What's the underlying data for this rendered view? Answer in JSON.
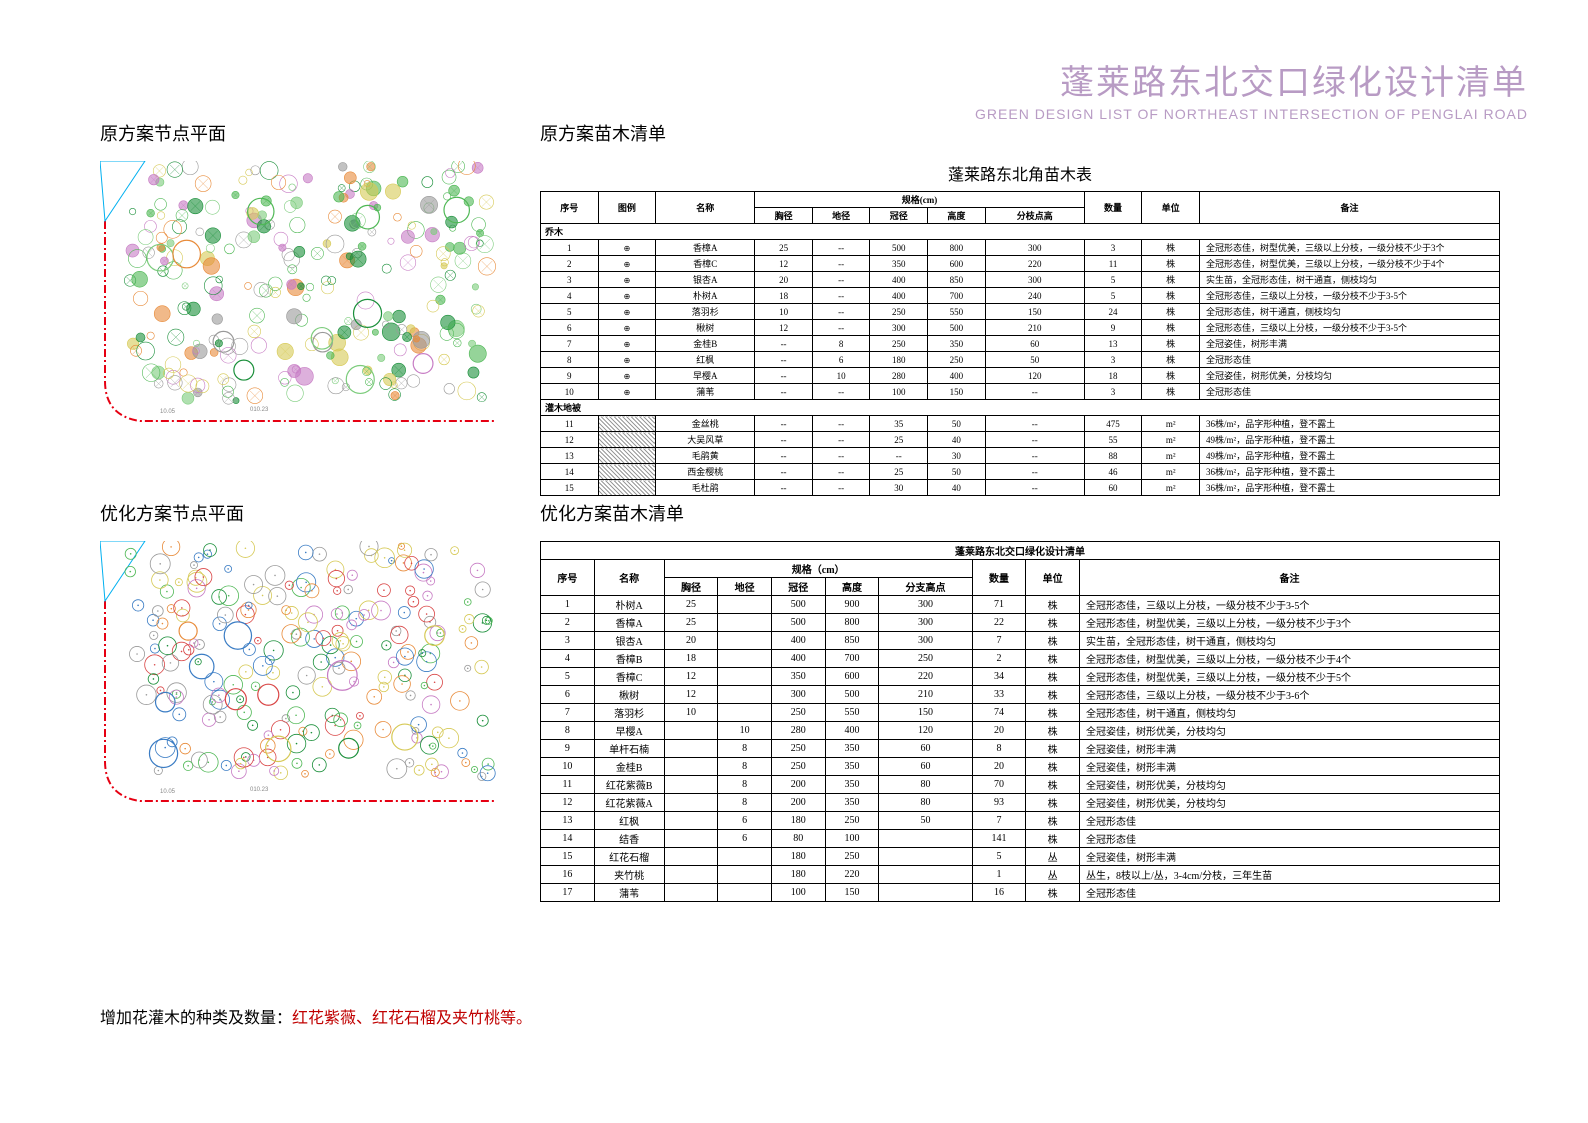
{
  "header": {
    "title_cn": "蓬莱路东北交口绿化设计清单",
    "title_en": "GREEN DESIGN LIST OF NORTHEAST INTERSECTION OF PENGLAI ROAD"
  },
  "labels": {
    "q1": "原方案节点平面",
    "q2": "原方案苗木清单",
    "q3": "优化方案节点平面",
    "q4": "优化方案苗木清单"
  },
  "table1": {
    "title": "蓬莱路东北角苗木表",
    "headers": {
      "seq": "序号",
      "pic": "图例",
      "name": "名称",
      "spec": "规格(cm)",
      "xj": "胸径",
      "dj": "地径",
      "gj": "冠径",
      "gd": "高度",
      "fz": "分枝点高",
      "qty": "数量",
      "unit": "单位",
      "remarks": "备注"
    },
    "section_trees": "乔木",
    "section_shrubs": "灌木地被",
    "rows_trees": [
      {
        "n": "1",
        "name": "香樟A",
        "xj": "25",
        "dj": "--",
        "gj": "500",
        "gd": "800",
        "fz": "300",
        "qty": "3",
        "unit": "株",
        "rem": "全冠形态佳，树型优美，三级以上分枝，一级分枝不少于3个"
      },
      {
        "n": "2",
        "name": "香樟C",
        "xj": "12",
        "dj": "--",
        "gj": "350",
        "gd": "600",
        "fz": "220",
        "qty": "11",
        "unit": "株",
        "rem": "全冠形态佳，树型优美，三级以上分枝，一级分枝不少于4个"
      },
      {
        "n": "3",
        "name": "银杏A",
        "xj": "20",
        "dj": "--",
        "gj": "400",
        "gd": "850",
        "fz": "300",
        "qty": "5",
        "unit": "株",
        "rem": "实生苗，全冠形态佳，树干通直，侧枝均匀"
      },
      {
        "n": "4",
        "name": "朴树A",
        "xj": "18",
        "dj": "--",
        "gj": "400",
        "gd": "700",
        "fz": "240",
        "qty": "5",
        "unit": "株",
        "rem": "全冠形态佳，三级以上分枝，一级分枝不少于3-5个"
      },
      {
        "n": "5",
        "name": "落羽杉",
        "xj": "10",
        "dj": "--",
        "gj": "250",
        "gd": "550",
        "fz": "150",
        "qty": "24",
        "unit": "株",
        "rem": "全冠形态佳，树干通直，侧枝均匀"
      },
      {
        "n": "6",
        "name": "楸树",
        "xj": "12",
        "dj": "--",
        "gj": "300",
        "gd": "500",
        "fz": "210",
        "qty": "9",
        "unit": "株",
        "rem": "全冠形态佳，三级以上分枝，一级分枝不少于3-5个"
      },
      {
        "n": "7",
        "name": "金桂B",
        "xj": "--",
        "dj": "8",
        "gj": "250",
        "gd": "350",
        "fz": "60",
        "qty": "13",
        "unit": "株",
        "rem": "全冠姿佳，树形丰满"
      },
      {
        "n": "8",
        "name": "红枫",
        "xj": "--",
        "dj": "6",
        "gj": "180",
        "gd": "250",
        "fz": "50",
        "qty": "3",
        "unit": "株",
        "rem": "全冠形态佳"
      },
      {
        "n": "9",
        "name": "早樱A",
        "xj": "--",
        "dj": "10",
        "gj": "280",
        "gd": "400",
        "fz": "120",
        "qty": "18",
        "unit": "株",
        "rem": "全冠姿佳，树形优美，分枝均匀"
      },
      {
        "n": "10",
        "name": "蒲苇",
        "xj": "--",
        "dj": "--",
        "gj": "100",
        "gd": "150",
        "fz": "--",
        "qty": "3",
        "unit": "株",
        "rem": "全冠形态佳"
      }
    ],
    "rows_shrubs": [
      {
        "n": "11",
        "name": "金丝桃",
        "xj": "--",
        "dj": "--",
        "gj": "35",
        "gd": "50",
        "fz": "--",
        "qty": "475",
        "unit": "m²",
        "rem": "36株/m²，品字形种植，登不露土"
      },
      {
        "n": "12",
        "name": "大吴风草",
        "xj": "--",
        "dj": "--",
        "gj": "25",
        "gd": "40",
        "fz": "--",
        "qty": "55",
        "unit": "m²",
        "rem": "49株/m²，品字形种植，登不露土"
      },
      {
        "n": "13",
        "name": "毛鹃黄",
        "xj": "--",
        "dj": "--",
        "gj": "--",
        "gd": "30",
        "fz": "--",
        "qty": "88",
        "unit": "m²",
        "rem": "49株/m²，品字形种植，登不露土"
      },
      {
        "n": "14",
        "name": "西金樱桃",
        "xj": "--",
        "dj": "--",
        "gj": "25",
        "gd": "50",
        "fz": "--",
        "qty": "46",
        "unit": "m²",
        "rem": "36株/m²，品字形种植，登不露土"
      },
      {
        "n": "15",
        "name": "毛杜鹃",
        "xj": "--",
        "dj": "--",
        "gj": "30",
        "gd": "40",
        "fz": "--",
        "qty": "60",
        "unit": "m²",
        "rem": "36株/m²，品字形种植，登不露土"
      }
    ]
  },
  "table2": {
    "title": "蓬莱路东北交口绿化设计清单",
    "headers": {
      "seq": "序号",
      "name": "名称",
      "spec": "规格（cm）",
      "xj": "胸径",
      "dj": "地径",
      "gj": "冠径",
      "gd": "高度",
      "fz": "分支高点",
      "qty": "数量",
      "unit": "单位",
      "remarks": "备注"
    },
    "rows": [
      {
        "n": "1",
        "name": "朴树A",
        "xj": "25",
        "dj": "",
        "gj": "500",
        "gd": "900",
        "fz": "300",
        "qty": "71",
        "unit": "株",
        "rem": "全冠形态佳，三级以上分枝，一级分枝不少于3-5个"
      },
      {
        "n": "2",
        "name": "香樟A",
        "xj": "25",
        "dj": "",
        "gj": "500",
        "gd": "800",
        "fz": "300",
        "qty": "22",
        "unit": "株",
        "rem": "全冠形态佳，树型优美，三级以上分枝，一级分枝不少于3个"
      },
      {
        "n": "3",
        "name": "银杏A",
        "xj": "20",
        "dj": "",
        "gj": "400",
        "gd": "850",
        "fz": "300",
        "qty": "7",
        "unit": "株",
        "rem": "实生苗，全冠形态佳，树干通直，侧枝均匀"
      },
      {
        "n": "4",
        "name": "香樟B",
        "xj": "18",
        "dj": "",
        "gj": "400",
        "gd": "700",
        "fz": "250",
        "qty": "2",
        "unit": "株",
        "rem": "全冠形态佳，树型优美，三级以上分枝，一级分枝不少于4个"
      },
      {
        "n": "5",
        "name": "香樟C",
        "xj": "12",
        "dj": "",
        "gj": "350",
        "gd": "600",
        "fz": "220",
        "qty": "34",
        "unit": "株",
        "rem": "全冠形态佳，树型优美，三级以上分枝，一级分枝不少于5个"
      },
      {
        "n": "6",
        "name": "楸树",
        "xj": "12",
        "dj": "",
        "gj": "300",
        "gd": "500",
        "fz": "210",
        "qty": "33",
        "unit": "株",
        "rem": "全冠形态佳，三级以上分枝，一级分枝不少于3-6个"
      },
      {
        "n": "7",
        "name": "落羽杉",
        "xj": "10",
        "dj": "",
        "gj": "250",
        "gd": "550",
        "fz": "150",
        "qty": "74",
        "unit": "株",
        "rem": "全冠形态佳，树干通直，侧枝均匀"
      },
      {
        "n": "8",
        "name": "早樱A",
        "xj": "",
        "dj": "10",
        "gj": "280",
        "gd": "400",
        "fz": "120",
        "qty": "20",
        "unit": "株",
        "rem": "全冠姿佳，树形优美，分枝均匀"
      },
      {
        "n": "9",
        "name": "单杆石楠",
        "xj": "",
        "dj": "8",
        "gj": "250",
        "gd": "350",
        "fz": "60",
        "qty": "8",
        "unit": "株",
        "rem": "全冠姿佳，树形丰满"
      },
      {
        "n": "10",
        "name": "金桂B",
        "xj": "",
        "dj": "8",
        "gj": "250",
        "gd": "350",
        "fz": "60",
        "qty": "20",
        "unit": "株",
        "rem": "全冠姿佳，树形丰满"
      },
      {
        "n": "11",
        "name": "红花紫薇B",
        "xj": "",
        "dj": "8",
        "gj": "200",
        "gd": "350",
        "fz": "80",
        "qty": "70",
        "unit": "株",
        "rem": "全冠姿佳，树形优美，分枝均匀"
      },
      {
        "n": "12",
        "name": "红花紫薇A",
        "xj": "",
        "dj": "8",
        "gj": "200",
        "gd": "350",
        "fz": "80",
        "qty": "93",
        "unit": "株",
        "rem": "全冠姿佳，树形优美，分枝均匀"
      },
      {
        "n": "13",
        "name": "红枫",
        "xj": "",
        "dj": "6",
        "gj": "180",
        "gd": "250",
        "fz": "50",
        "qty": "7",
        "unit": "株",
        "rem": "全冠形态佳"
      },
      {
        "n": "14",
        "name": "结香",
        "xj": "",
        "dj": "6",
        "gj": "80",
        "gd": "100",
        "fz": "",
        "qty": "141",
        "unit": "株",
        "rem": "全冠形态佳"
      },
      {
        "n": "15",
        "name": "红花石榴",
        "xj": "",
        "dj": "",
        "gj": "180",
        "gd": "250",
        "fz": "",
        "qty": "5",
        "unit": "丛",
        "rem": "全冠姿佳，树形丰满"
      },
      {
        "n": "16",
        "name": "夹竹桃",
        "xj": "",
        "dj": "",
        "gj": "180",
        "gd": "220",
        "fz": "",
        "qty": "1",
        "unit": "丛",
        "rem": "丛生，8枝以上/丛，3-4cm/分枝，三年生苗"
      },
      {
        "n": "17",
        "name": "蒲苇",
        "xj": "",
        "dj": "",
        "gj": "100",
        "gd": "150",
        "fz": "",
        "qty": "16",
        "unit": "株",
        "rem": "全冠形态佳"
      }
    ]
  },
  "footer": {
    "prefix": "增加花灌木的种类及数量：",
    "highlight": "红花紫薇、红花石榴及夹竹桃等。"
  },
  "plan_colors": {
    "boundary": "#e60012",
    "water": "#00b0f0",
    "green1": "#1a8f3a",
    "green2": "#4fb855",
    "green3": "#7ccc7c",
    "purple": "#c77cc4",
    "orange": "#e88b3a",
    "yellow": "#d6c955",
    "red2": "#d94545",
    "blue2": "#3a7cc4",
    "gray": "#999999"
  }
}
